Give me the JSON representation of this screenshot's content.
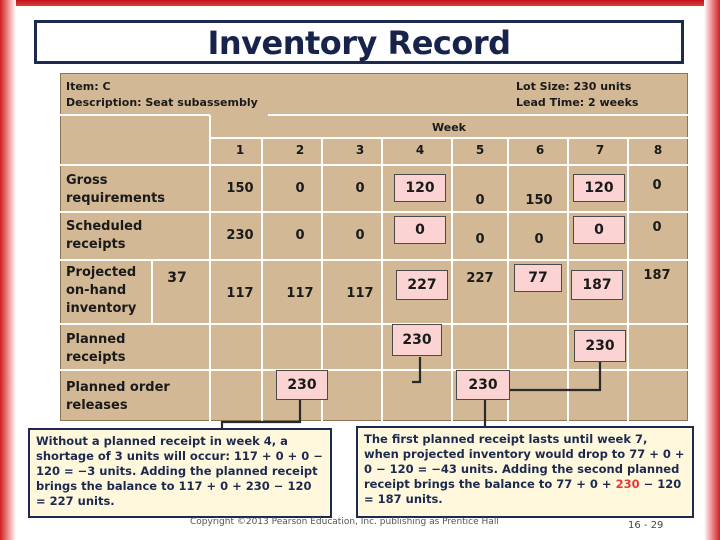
{
  "slide": {
    "title": "Inventory Record",
    "footer": "Copyright ©2013 Pearson Education, Inc. publishing as Prentice Hall",
    "page": "16 - 29"
  },
  "record": {
    "item": "Item: C",
    "description": "Description: Seat subassembly",
    "lot_size": "Lot Size: 230 units",
    "lead_time": "Lead Time: 2 weeks",
    "week_label": "Week",
    "weeks": [
      "1",
      "2",
      "3",
      "4",
      "5",
      "6",
      "7",
      "8"
    ],
    "rows": {
      "gross": {
        "label": "Gross requirements",
        "values": [
          "150",
          "0",
          "0",
          "120",
          "0",
          "150",
          "120",
          "0"
        ]
      },
      "scheduled": {
        "label": "Scheduled receipts",
        "values": [
          "230",
          "0",
          "0",
          "0",
          "0",
          "0",
          "0",
          "0"
        ]
      },
      "projected": {
        "label": "Projected on-hand inventory",
        "initial": "37",
        "values": [
          "117",
          "117",
          "117",
          "227",
          "227",
          "77",
          "187",
          "187"
        ]
      },
      "planned_receipts": {
        "label": "Planned receipts",
        "wk4": "230",
        "wk7": "230"
      },
      "planned_releases": {
        "label": "Planned order releases",
        "wk2": "230",
        "wk5": "230"
      }
    }
  },
  "notes": {
    "left": "Without a planned receipt in week 4, a shortage of 3 units will occur: 117 + 0 + 0 − 120 = −3 units. Adding the planned receipt brings the balance to 117 + 0 + 230 − 120 = 227 units.",
    "right_part1": "The first planned receipt lasts until week 7, when projected inventory would drop to 77 + 0 + 0 − 120 = −43 units. Adding the second planned receipt brings the balance to 77 + 0 + ",
    "right_accent": "230",
    "right_part2": " − 120 = 187 units."
  },
  "colors": {
    "frame": "#d01e22",
    "panel": "#d2b894",
    "highlight": "#fbd3d3",
    "title_border": "#1c2a50",
    "note_bg": "#fff8dd"
  }
}
